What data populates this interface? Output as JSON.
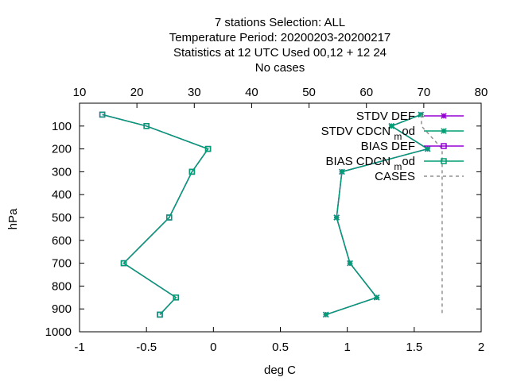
{
  "chart_data": {
    "type": "line",
    "title_lines": [
      "7 stations Selection: ALL",
      "Temperature  Period: 20200203-20200217",
      "Statistics at 12 UTC  Used  00,12  + 12 24",
      "No cases"
    ],
    "xlabel": "deg C",
    "ylabel": "hPa",
    "xlim": [
      -1,
      2
    ],
    "ylim": [
      1000,
      0
    ],
    "x_ticks": [
      "-1",
      "-0.5",
      "0",
      "0.5",
      "1",
      "1.5",
      "2"
    ],
    "y_ticks": [
      "100",
      "200",
      "300",
      "400",
      "500",
      "600",
      "700",
      "800",
      "900",
      "1000"
    ],
    "x2lim": [
      10,
      80
    ],
    "x2_ticks": [
      "10",
      "20",
      "30",
      "40",
      "50",
      "60",
      "70",
      "80"
    ],
    "legend_position": "top-right",
    "series": [
      {
        "name": "STDV DEF",
        "color": "#9400d3",
        "marker": "x",
        "points": [
          [
            1.55,
            50
          ],
          [
            1.33,
            100
          ],
          [
            1.6,
            200
          ],
          [
            0.96,
            300
          ],
          [
            0.92,
            500
          ],
          [
            1.02,
            700
          ],
          [
            1.22,
            850
          ],
          [
            0.84,
            925
          ]
        ]
      },
      {
        "name": "STDV CDCN_mod",
        "color": "#009e73",
        "marker": "x",
        "points": [
          [
            1.55,
            50
          ],
          [
            1.33,
            100
          ],
          [
            1.6,
            200
          ],
          [
            0.96,
            300
          ],
          [
            0.92,
            500
          ],
          [
            1.02,
            700
          ],
          [
            1.22,
            850
          ],
          [
            0.84,
            925
          ]
        ]
      },
      {
        "name": "BIAS DEF",
        "color": "#9400d3",
        "marker": "square",
        "points": [
          [
            -0.83,
            50
          ],
          [
            -0.5,
            100
          ],
          [
            -0.04,
            200
          ],
          [
            -0.16,
            300
          ],
          [
            -0.33,
            500
          ],
          [
            -0.67,
            700
          ],
          [
            -0.28,
            850
          ],
          [
            -0.4,
            925
          ]
        ]
      },
      {
        "name": "BIAS CDCN_mod",
        "color": "#009e73",
        "marker": "square",
        "points": [
          [
            -0.83,
            50
          ],
          [
            -0.5,
            100
          ],
          [
            -0.04,
            200
          ],
          [
            -0.16,
            300
          ],
          [
            -0.33,
            500
          ],
          [
            -0.67,
            700
          ],
          [
            -0.28,
            850
          ],
          [
            -0.4,
            925
          ]
        ]
      },
      {
        "name": "CASES",
        "color": "#909090",
        "marker": "none",
        "dashed": true,
        "axis": "x2",
        "points": [
          [
            69.6,
            50
          ],
          [
            69.6,
            100
          ],
          [
            73.2,
            200
          ],
          [
            73.2,
            300
          ],
          [
            73.2,
            500
          ],
          [
            73.2,
            700
          ],
          [
            73.2,
            850
          ],
          [
            73.2,
            925
          ]
        ]
      }
    ]
  }
}
